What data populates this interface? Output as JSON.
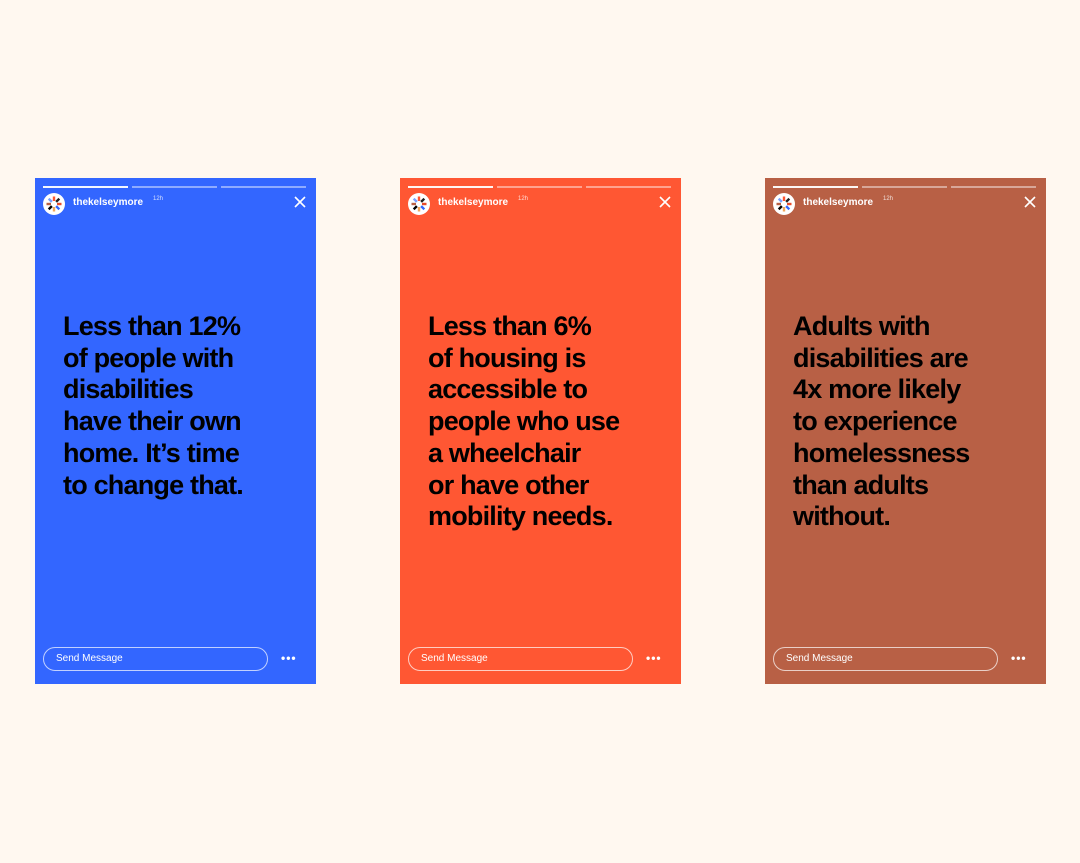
{
  "stories": [
    {
      "color": "#3366ff",
      "username": "thekelseymore",
      "time": "12h",
      "text": "Less than 12%\nof people with\ndisabilities\nhave their own\nhome. It’s time\nto change that.",
      "message_placeholder": "Send Message",
      "more_icon": "ellipsis-icon",
      "close_icon": "close-icon"
    },
    {
      "color": "#ff5733",
      "username": "thekelseymore",
      "time": "12h",
      "text": "Less than 6%\nof housing is\naccessible to\npeople who use\na wheelchair\nor have other\nmobility needs.",
      "message_placeholder": "Send Message",
      "more_icon": "ellipsis-icon",
      "close_icon": "close-icon"
    },
    {
      "color": "#b86045",
      "username": "thekelseymore",
      "time": "12h",
      "text": "Adults with\ndisabilities are\n4x more likely\nto experience\nhomelessness\nthan adults\nwithout.",
      "message_placeholder": "Send Message",
      "more_icon": "ellipsis-icon",
      "close_icon": "close-icon"
    }
  ]
}
